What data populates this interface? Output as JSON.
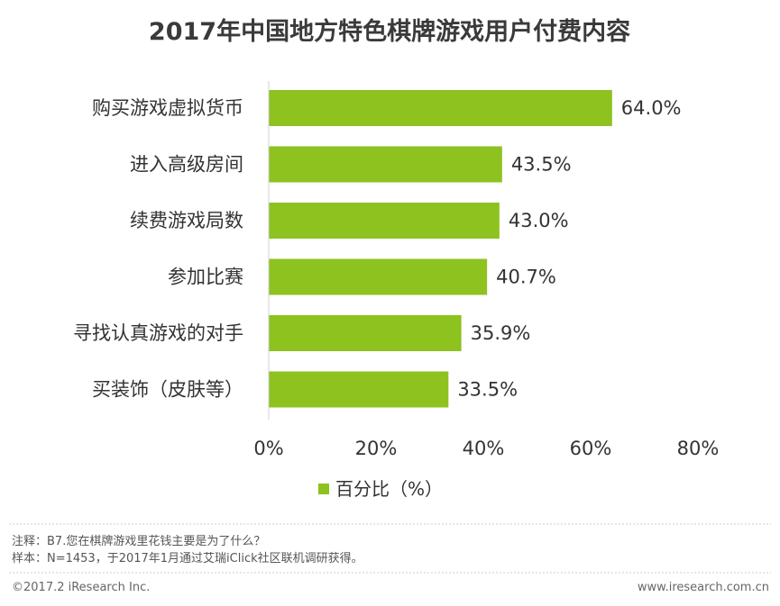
{
  "chart_data": {
    "type": "bar",
    "orientation": "horizontal",
    "title": "2017年中国地方特色棋牌游戏用户付费内容",
    "categories": [
      "购买游戏虚拟货币",
      "进入高级房间",
      "续费游戏局数",
      "参加比赛",
      "寻找认真游戏的对手",
      "买装饰（皮肤等）"
    ],
    "series": [
      {
        "name": "百分比（%）",
        "values": [
          64.0,
          43.5,
          43.0,
          40.7,
          35.9,
          33.5
        ]
      }
    ],
    "value_labels": [
      "64.0%",
      "43.5%",
      "43.0%",
      "40.7%",
      "35.9%",
      "33.5%"
    ],
    "xlim": [
      0,
      80
    ],
    "ticks": [
      0,
      20,
      40,
      60,
      80
    ],
    "tick_labels": [
      "0%",
      "20%",
      "40%",
      "60%",
      "80%"
    ],
    "bar_color": "#8dc21f",
    "grid": false,
    "legend_position": "bottom"
  },
  "notes": {
    "question": "注释：B7.您在棋牌游戏里花钱主要是为了什么？",
    "sample": "样本：N=1453，于2017年1月通过艾瑞iClick社区联机调研获得。"
  },
  "footer": {
    "copyright": "©2017.2 iResearch Inc.",
    "website": "www.iresearch.com.cn"
  }
}
